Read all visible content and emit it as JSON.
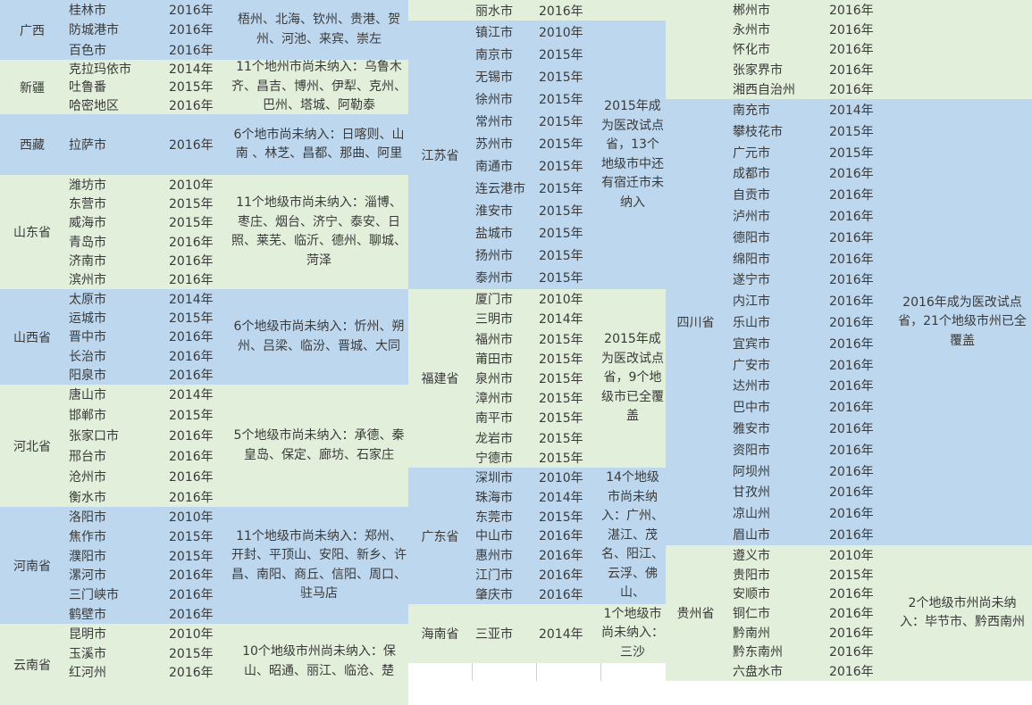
{
  "colors": {
    "blue": "#bdd7ee",
    "green": "#e2efda"
  },
  "groups": [
    {
      "sections": [
        {
          "province": "广西",
          "color": "blue",
          "rows": [
            [
              "桂林市",
              "2016年"
            ],
            [
              "防城港市",
              "2016年"
            ],
            [
              "百色市",
              "2016年"
            ]
          ],
          "note": "梧州、北海、钦州、贵港、贺州、河池、来宾、崇左"
        },
        {
          "province": "新疆",
          "color": "green",
          "rows": [
            [
              "克拉玛依市",
              "2014年"
            ],
            [
              "吐鲁番",
              "2015年"
            ],
            [
              "哈密地区",
              "2016年"
            ]
          ],
          "note": "11个地州市尚未纳入：乌鲁木齐、昌吉、博州、伊犁、克州、巴州、塔城、阿勒泰"
        },
        {
          "province": "西藏",
          "color": "blue",
          "rows": [
            [
              "拉萨市",
              "2016年"
            ]
          ],
          "note": "6个地市尚未纳入：日喀则、山南 、林芝、昌都、那曲、阿里"
        },
        {
          "province": "山东省",
          "color": "green",
          "rows": [
            [
              "潍坊市",
              "2010年"
            ],
            [
              "东营市",
              "2015年"
            ],
            [
              "威海市",
              "2015年"
            ],
            [
              "青岛市",
              "2016年"
            ],
            [
              "济南市",
              "2016年"
            ],
            [
              "滨州市",
              "2016年"
            ]
          ],
          "note": "11个地级市尚未纳入：淄博、枣庄、烟台、济宁、泰安、日照、莱芜、临沂、德州、聊城、菏泽"
        },
        {
          "province": "山西省",
          "color": "blue",
          "rows": [
            [
              "太原市",
              "2014年"
            ],
            [
              "运城市",
              "2015年"
            ],
            [
              "晋中市",
              "2016年"
            ],
            [
              "长治市",
              "2016年"
            ],
            [
              "阳泉市",
              "2016年"
            ]
          ],
          "note": "6个地级市尚未纳入：忻州、朔州、吕梁、临汾、晋城、大同"
        },
        {
          "province": "河北省",
          "color": "green",
          "rows": [
            [
              "唐山市",
              "2014年"
            ],
            [
              "邯郸市",
              "2015年"
            ],
            [
              "张家口市",
              "2016年"
            ],
            [
              "邢台市",
              "2016年"
            ],
            [
              "沧州市",
              "2016年"
            ],
            [
              "衡水市",
              "2016年"
            ]
          ],
          "note": "5个地级市尚未纳入：承德、秦皇岛、保定、廊坊、石家庄"
        },
        {
          "province": "河南省",
          "color": "blue",
          "rows": [
            [
              "洛阳市",
              "2010年"
            ],
            [
              "焦作市",
              "2015年"
            ],
            [
              "濮阳市",
              "2015年"
            ],
            [
              "漯河市",
              "2016年"
            ],
            [
              "三门峡市",
              "2016年"
            ],
            [
              "鹤壁市",
              "2016年"
            ]
          ],
          "note": "11个地级市尚未纳入：郑州、开封、平顶山、安阳、新乡、许昌、南阳、商丘、信阳、周口、驻马店"
        },
        {
          "province": "云南省",
          "color": "green",
          "rows": [
            [
              "昆明市",
              "2010年"
            ],
            [
              "玉溪市",
              "2015年"
            ],
            [
              "红河州",
              "2016年"
            ]
          ],
          "note": "10个地级市州尚未纳入：保山、昭通、丽江、临沧、楚"
        }
      ]
    },
    {
      "sections": [
        {
          "province": "",
          "color": "green",
          "rows": [
            [
              "丽水市",
              "2016年"
            ]
          ],
          "note": ""
        },
        {
          "province": "江苏省",
          "color": "blue",
          "rows": [
            [
              "镇江市",
              "2010年"
            ],
            [
              "南京市",
              "2015年"
            ],
            [
              "无锡市",
              "2015年"
            ],
            [
              "徐州市",
              "2015年"
            ],
            [
              "常州市",
              "2015年"
            ],
            [
              "苏州市",
              "2015年"
            ],
            [
              "南通市",
              "2015年"
            ],
            [
              "连云港市",
              "2015年"
            ],
            [
              "淮安市",
              "2015年"
            ],
            [
              "盐城市",
              "2015年"
            ],
            [
              "扬州市",
              "2015年"
            ],
            [
              "泰州市",
              "2015年"
            ]
          ],
          "note": "2015年成为医改试点省，13个地级市中还有宿迁市未纳入"
        },
        {
          "province": "福建省",
          "color": "green",
          "rows": [
            [
              "厦门市",
              "2010年"
            ],
            [
              "三明市",
              "2014年"
            ],
            [
              "福州市",
              "2015年"
            ],
            [
              "莆田市",
              "2015年"
            ],
            [
              "泉州市",
              "2015年"
            ],
            [
              "漳州市",
              "2015年"
            ],
            [
              "南平市",
              "2015年"
            ],
            [
              "龙岩市",
              "2015年"
            ],
            [
              "宁德市",
              "2015年"
            ]
          ],
          "note": "2015年成为医改试点省，9个地级市已全覆盖"
        },
        {
          "province": "广东省",
          "color": "blue",
          "rows": [
            [
              "深圳市",
              "2010年"
            ],
            [
              "珠海市",
              "2014年"
            ],
            [
              "东莞市",
              "2015年"
            ],
            [
              "中山市",
              "2016年"
            ],
            [
              "惠州市",
              "2016年"
            ],
            [
              "江门市",
              "2016年"
            ],
            [
              "肇庆市",
              "2016年"
            ]
          ],
          "note": "14个地级市尚未纳入：广州、湛江、茂名、阳江、云浮、佛山、"
        },
        {
          "province": "海南省",
          "color": "green",
          "rows": [
            [
              "三亚市",
              "2014年"
            ]
          ],
          "note": "1个地级市尚未纳入：三沙"
        }
      ]
    },
    {
      "sections": [
        {
          "province": "",
          "color": "green",
          "rows": [
            [
              "郴州市",
              "2016年"
            ],
            [
              "永州市",
              "2016年"
            ],
            [
              "怀化市",
              "2016年"
            ],
            [
              "张家界市",
              "2016年"
            ],
            [
              "湘西自治州",
              "2016年"
            ]
          ],
          "note": ""
        },
        {
          "province": "四川省",
          "color": "blue",
          "rows": [
            [
              "南充市",
              "2014年"
            ],
            [
              "攀枝花市",
              "2015年"
            ],
            [
              "广元市",
              "2015年"
            ],
            [
              "成都市",
              "2016年"
            ],
            [
              "自贡市",
              "2016年"
            ],
            [
              "泸州市",
              "2016年"
            ],
            [
              "德阳市",
              "2016年"
            ],
            [
              "绵阳市",
              "2016年"
            ],
            [
              "遂宁市",
              "2016年"
            ],
            [
              "内江市",
              "2016年"
            ],
            [
              "乐山市",
              "2016年"
            ],
            [
              "宜宾市",
              "2016年"
            ],
            [
              "广安市",
              "2016年"
            ],
            [
              "达州市",
              "2016年"
            ],
            [
              "巴中市",
              "2016年"
            ],
            [
              "雅安市",
              "2016年"
            ],
            [
              "资阳市",
              "2016年"
            ],
            [
              "阿坝州",
              "2016年"
            ],
            [
              "甘孜州",
              "2016年"
            ],
            [
              "凉山州",
              "2016年"
            ],
            [
              "眉山市",
              "2016年"
            ]
          ],
          "note": "2016年成为医改试点省，21个地级市州已全覆盖"
        },
        {
          "province": "贵州省",
          "color": "green",
          "rows": [
            [
              "遵义市",
              "2010年"
            ],
            [
              "贵阳市",
              "2015年"
            ],
            [
              "安顺市",
              "2016年"
            ],
            [
              "铜仁市",
              "2016年"
            ],
            [
              "黔南州",
              "2016年"
            ],
            [
              "黔东南州",
              "2016年"
            ],
            [
              "六盘水市",
              "2016年"
            ]
          ],
          "note": "2个地级市州尚未纳入：毕节市、黔西南州"
        }
      ]
    }
  ]
}
